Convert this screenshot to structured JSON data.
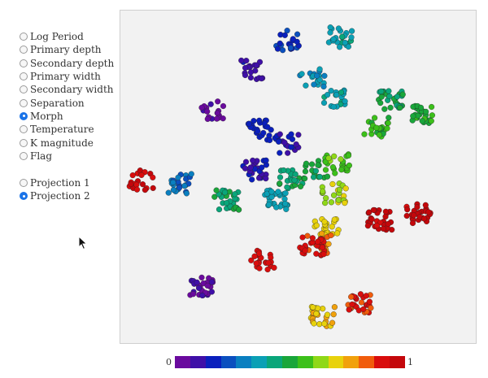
{
  "color_options": [
    {
      "label": "Log Period",
      "checked": false
    },
    {
      "label": "Primary depth",
      "checked": false
    },
    {
      "label": "Secondary depth",
      "checked": false
    },
    {
      "label": "Primary width",
      "checked": false
    },
    {
      "label": "Secondary width",
      "checked": false
    },
    {
      "label": "Separation",
      "checked": false
    },
    {
      "label": "Morph",
      "checked": true
    },
    {
      "label": "Temperature",
      "checked": false
    },
    {
      "label": "K magnitude",
      "checked": false
    },
    {
      "label": "Flag",
      "checked": false
    }
  ],
  "projection_options": [
    {
      "label": "Projection 1",
      "checked": false
    },
    {
      "label": "Projection 2",
      "checked": true
    }
  ],
  "colorbar": {
    "min_label": "0",
    "max_label": "1",
    "colors": [
      "#6a0a9e",
      "#3f0fa8",
      "#0a1fbd",
      "#0b4fbf",
      "#0a7fc0",
      "#0ba0b5",
      "#0aa67a",
      "#19a63a",
      "#3cc01a",
      "#8fd818",
      "#e8d20c",
      "#f1a10c",
      "#f15c0c",
      "#d90d0d",
      "#c4070b"
    ]
  },
  "chart_data": {
    "type": "scatter",
    "title": "",
    "xlabel": "",
    "ylabel": "",
    "color_variable": "Morph",
    "color_range": [
      0,
      1
    ],
    "clusters": [
      {
        "x": 0.26,
        "y": 0.3,
        "morph": 0.02
      },
      {
        "x": 0.37,
        "y": 0.18,
        "morph": 0.08
      },
      {
        "x": 0.47,
        "y": 0.09,
        "morph": 0.17
      },
      {
        "x": 0.62,
        "y": 0.08,
        "morph": 0.38
      },
      {
        "x": 0.54,
        "y": 0.2,
        "morph": 0.32
      },
      {
        "x": 0.6,
        "y": 0.27,
        "morph": 0.38
      },
      {
        "x": 0.76,
        "y": 0.27,
        "morph": 0.47
      },
      {
        "x": 0.85,
        "y": 0.31,
        "morph": 0.52
      },
      {
        "x": 0.72,
        "y": 0.35,
        "morph": 0.55
      },
      {
        "x": 0.39,
        "y": 0.36,
        "morph": 0.14
      },
      {
        "x": 0.38,
        "y": 0.48,
        "morph": 0.1
      },
      {
        "x": 0.47,
        "y": 0.4,
        "morph": 0.12
      },
      {
        "x": 0.48,
        "y": 0.51,
        "morph": 0.45
      },
      {
        "x": 0.55,
        "y": 0.48,
        "morph": 0.48
      },
      {
        "x": 0.61,
        "y": 0.46,
        "morph": 0.59
      },
      {
        "x": 0.6,
        "y": 0.55,
        "morph": 0.67
      },
      {
        "x": 0.58,
        "y": 0.65,
        "morph": 0.72
      },
      {
        "x": 0.56,
        "y": 0.7,
        "morph": 0.82
      },
      {
        "x": 0.17,
        "y": 0.52,
        "morph": 0.25
      },
      {
        "x": 0.3,
        "y": 0.57,
        "morph": 0.45
      },
      {
        "x": 0.44,
        "y": 0.57,
        "morph": 0.35
      },
      {
        "x": 0.06,
        "y": 0.51,
        "morph": 0.95
      },
      {
        "x": 0.4,
        "y": 0.75,
        "morph": 0.93
      },
      {
        "x": 0.54,
        "y": 0.71,
        "morph": 0.93
      },
      {
        "x": 0.73,
        "y": 0.63,
        "morph": 0.98
      },
      {
        "x": 0.84,
        "y": 0.61,
        "morph": 0.99
      },
      {
        "x": 0.23,
        "y": 0.83,
        "morph": 0.04
      },
      {
        "x": 0.57,
        "y": 0.92,
        "morph": 0.75
      },
      {
        "x": 0.67,
        "y": 0.88,
        "morph": 0.9
      }
    ]
  }
}
